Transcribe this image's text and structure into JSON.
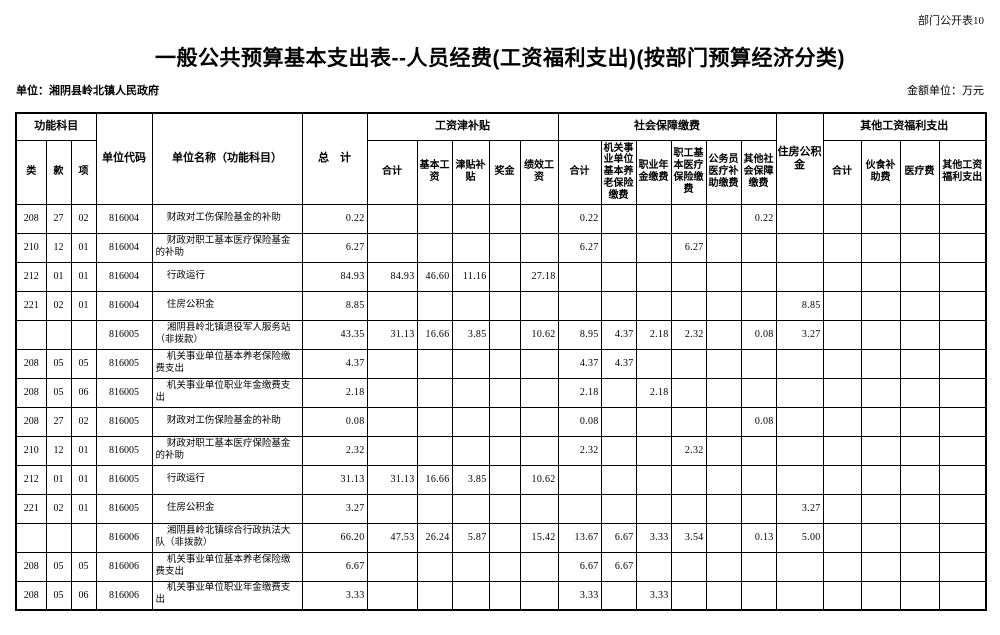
{
  "page": {
    "doc_label": "部门公开表10",
    "title": "一般公共预算基本支出表--人员经费(工资福利支出)(按部门预算经济分类)",
    "unit_label": "单位：湘阴县岭北镇人民政府",
    "amount_unit_label": "金额单位：万元"
  },
  "table": {
    "header": {
      "functional_subject_group": "功能科目",
      "category": "类",
      "section": "款",
      "item": "项",
      "unit_code": "单位代码",
      "unit_name": "单位名称（功能科目）",
      "grand_total": "总　计",
      "salary_allowance_group": "工资津补贴",
      "salary_cols": [
        "合计",
        "基本工资",
        "津贴补贴",
        "奖金",
        "绩效工资"
      ],
      "social_security_group": "社会保障缴费",
      "social_cols": [
        "合计",
        "机关事业单位基本养老保险缴费",
        "职业年金缴费",
        "职工基本医疗保险缴费",
        "公务员医疗补助缴费",
        "其他社会保障缴费"
      ],
      "housing_fund": "住房公积金",
      "other_welfare_group": "其他工资福利支出",
      "other_cols": [
        "合计",
        "伙食补助费",
        "医疗费",
        "其他工资福利支出"
      ]
    },
    "rows": [
      {
        "cells": [
          "208",
          "27",
          "02",
          "816004",
          "财政对工伤保险基金的补助",
          "0.22",
          "",
          "",
          "",
          "",
          "",
          "0.22",
          "",
          "",
          "",
          "",
          "0.22",
          "",
          "",
          "",
          "",
          ""
        ]
      },
      {
        "cells": [
          "210",
          "12",
          "01",
          "816004",
          "财政对职工基本医疗保险基金的补助",
          "6.27",
          "",
          "",
          "",
          "",
          "",
          "6.27",
          "",
          "",
          "6.27",
          "",
          "",
          "",
          "",
          "",
          "",
          ""
        ]
      },
      {
        "cells": [
          "212",
          "01",
          "01",
          "816004",
          "行政运行",
          "84.93",
          "84.93",
          "46.60",
          "11.16",
          "",
          "27.18",
          "",
          "",
          "",
          "",
          "",
          "",
          "",
          "",
          "",
          "",
          ""
        ]
      },
      {
        "cells": [
          "221",
          "02",
          "01",
          "816004",
          "住房公积金",
          "8.85",
          "",
          "",
          "",
          "",
          "",
          "",
          "",
          "",
          "",
          "",
          "",
          "8.85",
          "",
          "",
          "",
          ""
        ]
      },
      {
        "cells": [
          "",
          "",
          "",
          "816005",
          "湘阴县岭北镇退役军人服务站（非拨款）",
          "43.35",
          "31.13",
          "16.66",
          "3.85",
          "",
          "10.62",
          "8.95",
          "4.37",
          "2.18",
          "2.32",
          "",
          "0.08",
          "3.27",
          "",
          "",
          "",
          ""
        ]
      },
      {
        "cells": [
          "208",
          "05",
          "05",
          "816005",
          "机关事业单位基本养老保险缴费支出",
          "4.37",
          "",
          "",
          "",
          "",
          "",
          "4.37",
          "4.37",
          "",
          "",
          "",
          "",
          "",
          "",
          "",
          "",
          ""
        ]
      },
      {
        "cells": [
          "208",
          "05",
          "06",
          "816005",
          "机关事业单位职业年金缴费支出",
          "2.18",
          "",
          "",
          "",
          "",
          "",
          "2.18",
          "",
          "2.18",
          "",
          "",
          "",
          "",
          "",
          "",
          "",
          ""
        ]
      },
      {
        "cells": [
          "208",
          "27",
          "02",
          "816005",
          "财政对工伤保险基金的补助",
          "0.08",
          "",
          "",
          "",
          "",
          "",
          "0.08",
          "",
          "",
          "",
          "",
          "0.08",
          "",
          "",
          "",
          "",
          ""
        ]
      },
      {
        "cells": [
          "210",
          "12",
          "01",
          "816005",
          "财政对职工基本医疗保险基金的补助",
          "2.32",
          "",
          "",
          "",
          "",
          "",
          "2.32",
          "",
          "",
          "2.32",
          "",
          "",
          "",
          "",
          "",
          "",
          ""
        ]
      },
      {
        "cells": [
          "212",
          "01",
          "01",
          "816005",
          "行政运行",
          "31.13",
          "31.13",
          "16.66",
          "3.85",
          "",
          "10.62",
          "",
          "",
          "",
          "",
          "",
          "",
          "",
          "",
          "",
          "",
          ""
        ]
      },
      {
        "cells": [
          "221",
          "02",
          "01",
          "816005",
          "住房公积金",
          "3.27",
          "",
          "",
          "",
          "",
          "",
          "",
          "",
          "",
          "",
          "",
          "",
          "3.27",
          "",
          "",
          "",
          ""
        ]
      },
      {
        "cells": [
          "",
          "",
          "",
          "816006",
          "湘阴县岭北镇综合行政执法大队（非拨款）",
          "66.20",
          "47.53",
          "26.24",
          "5.87",
          "",
          "15.42",
          "13.67",
          "6.67",
          "3.33",
          "3.54",
          "",
          "0.13",
          "5.00",
          "",
          "",
          "",
          ""
        ]
      },
      {
        "cells": [
          "208",
          "05",
          "05",
          "816006",
          "机关事业单位基本养老保险缴费支出",
          "6.67",
          "",
          "",
          "",
          "",
          "",
          "6.67",
          "6.67",
          "",
          "",
          "",
          "",
          "",
          "",
          "",
          "",
          ""
        ]
      },
      {
        "cells": [
          "208",
          "05",
          "06",
          "816006",
          "机关事业单位职业年金缴费支出",
          "3.33",
          "",
          "",
          "",
          "",
          "",
          "3.33",
          "",
          "3.33",
          "",
          "",
          "",
          "",
          "",
          "",
          "",
          ""
        ]
      }
    ]
  }
}
